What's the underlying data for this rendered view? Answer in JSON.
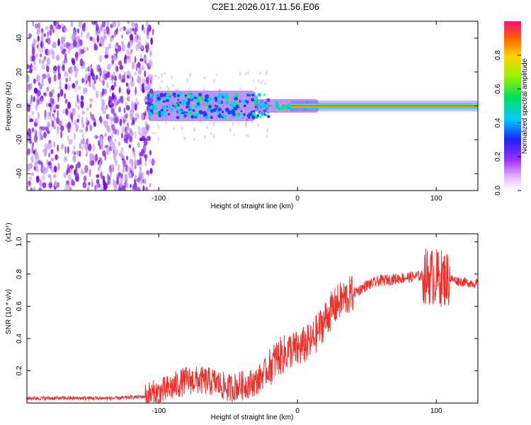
{
  "title": "C2E1.2026.017.11.56.E06",
  "chart_data": [
    {
      "type": "heatmap",
      "name": "spectrogram",
      "xlabel": "Height of straight line (km)",
      "ylabel": "Frequency (Hz)",
      "xlim": [
        -195,
        130
      ],
      "ylim": [
        -50,
        50
      ],
      "xticks": [
        -100,
        0,
        100
      ],
      "yticks": [
        -40,
        -20,
        0,
        20,
        40
      ],
      "colorbar": {
        "label": "Normalized spectral amplitude",
        "range": [
          0,
          1
        ],
        "ticks": [
          "0.0",
          "0.2",
          "0.4",
          "0.6",
          "0.8"
        ]
      },
      "features": {
        "noise_region_x": [
          -195,
          -108
        ],
        "broadband_region_x": [
          -108,
          -30
        ],
        "tone_frequency_hz": 0
      }
    },
    {
      "type": "line",
      "name": "snr",
      "xlabel": "Height of straight line (km)",
      "ylabel": "SNR (10 * v/v)",
      "multiplier": "(x10⁴)",
      "xlim": [
        -195,
        130
      ],
      "ylim": [
        0,
        1.05
      ],
      "xticks": [
        -100,
        0,
        100
      ],
      "yticks": [
        0.2,
        0.4,
        0.6,
        0.8,
        1.0
      ],
      "color": "#e8322e",
      "series": [
        {
          "name": "SNR",
          "x": [
            -195,
            -160,
            -130,
            -110,
            -100,
            -90,
            -80,
            -70,
            -60,
            -50,
            -40,
            -30,
            -20,
            -15,
            -10,
            -5,
            0,
            5,
            10,
            15,
            20,
            25,
            30,
            40,
            50,
            60,
            70,
            80,
            90,
            100,
            110,
            120,
            130
          ],
          "y": [
            0.03,
            0.03,
            0.03,
            0.04,
            0.06,
            0.1,
            0.14,
            0.14,
            0.13,
            0.09,
            0.11,
            0.13,
            0.22,
            0.28,
            0.3,
            0.33,
            0.33,
            0.36,
            0.38,
            0.45,
            0.52,
            0.58,
            0.63,
            0.68,
            0.73,
            0.76,
            0.77,
            0.78,
            0.79,
            0.78,
            0.77,
            0.75,
            0.74
          ]
        }
      ]
    }
  ]
}
